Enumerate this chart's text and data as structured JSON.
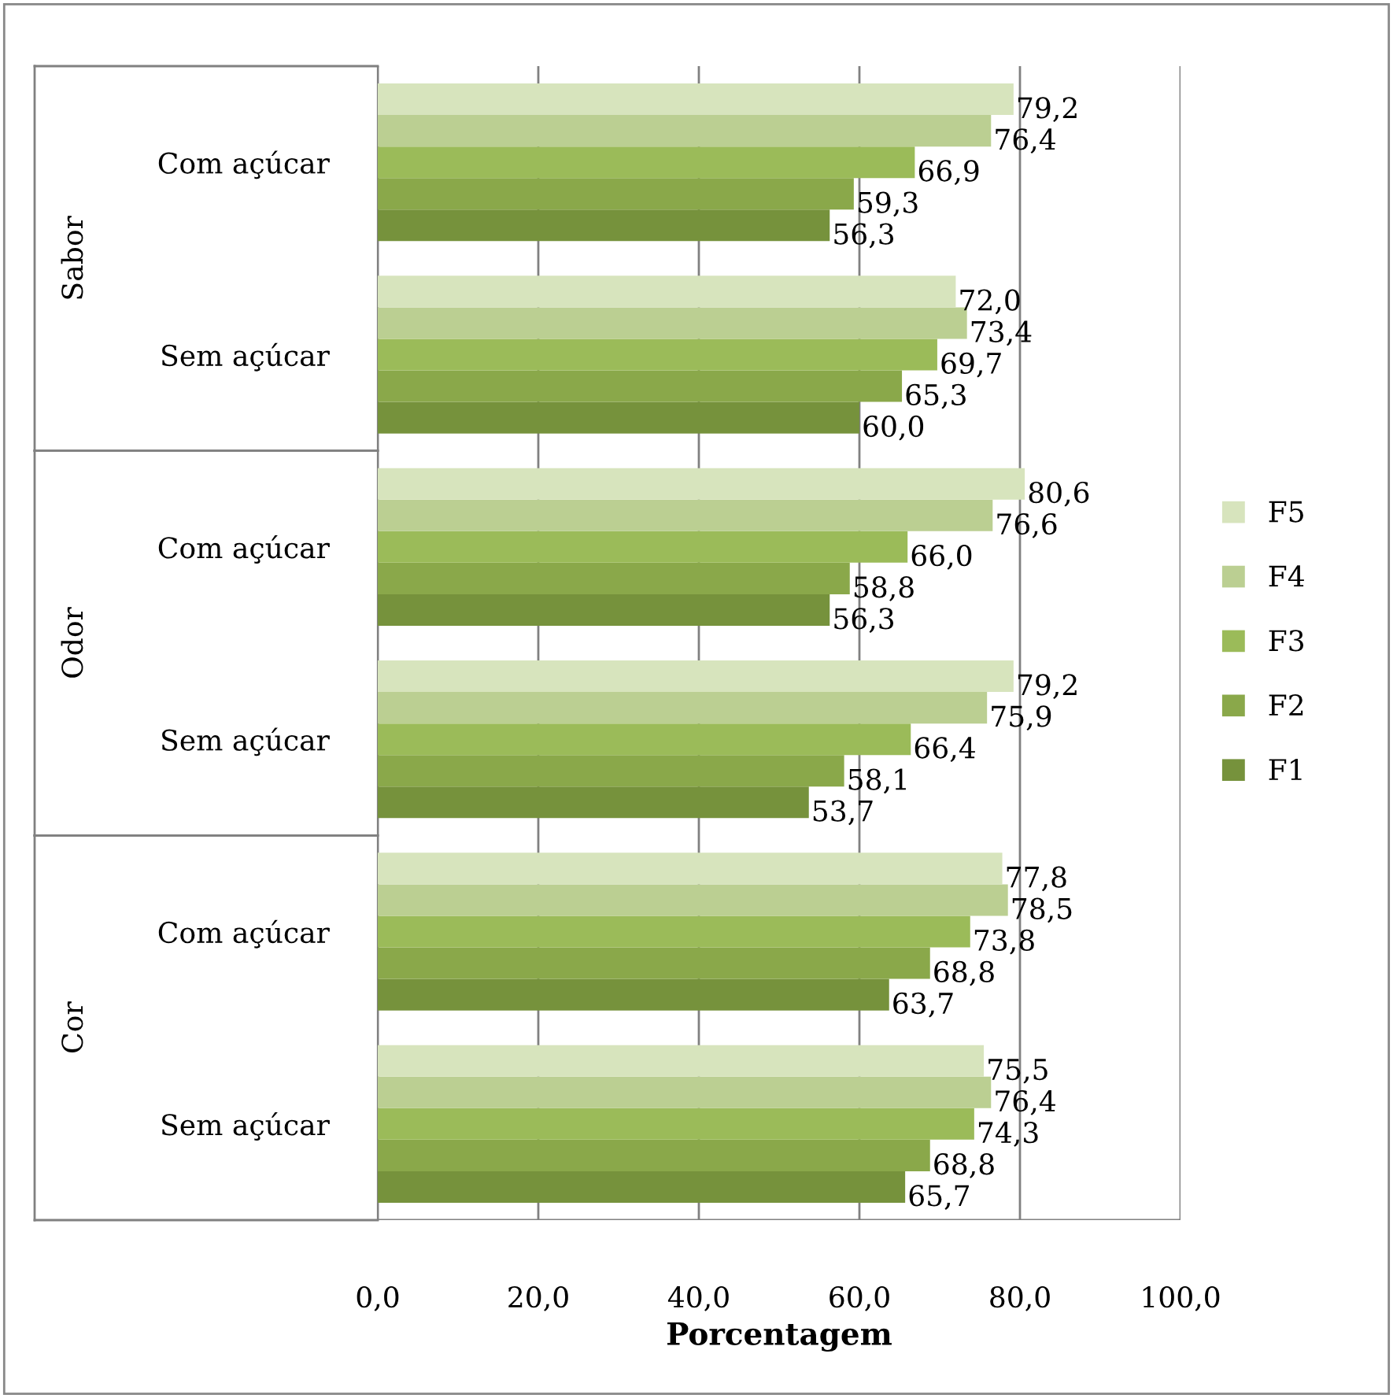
{
  "chart_data": {
    "type": "bar",
    "orientation": "horizontal",
    "xlabel": "Porcentagem",
    "categories": [
      "Com açúcar",
      "Sem açúcar",
      "Com açúcar",
      "Sem açúcar",
      "Com açúcar",
      "Sem açúcar"
    ],
    "annotations": [
      "Sabor",
      "Odor",
      "Cor"
    ],
    "series": [
      {
        "name": "F1",
        "color": "#76923c",
        "values": [
          56.3,
          60.0,
          56.3,
          53.7,
          63.7,
          65.7
        ],
        "value_labels": [
          "56,3",
          "60,0",
          "56,3",
          "53,7",
          "63,7",
          "65,7"
        ]
      },
      {
        "name": "F2",
        "color": "#8aa84a",
        "values": [
          59.3,
          65.3,
          58.8,
          58.1,
          68.8,
          68.8
        ],
        "value_labels": [
          "59,3",
          "65,3",
          "58,8",
          "58,1",
          "68,8",
          "68,8"
        ]
      },
      {
        "name": "F3",
        "color": "#9bbb59",
        "values": [
          66.9,
          69.7,
          66.0,
          66.4,
          73.8,
          74.3
        ],
        "value_labels": [
          "66,9",
          "69,7",
          "66,0",
          "66,4",
          "73,8",
          "74,3"
        ]
      },
      {
        "name": "F4",
        "color": "#bbcf92",
        "values": [
          76.4,
          73.4,
          76.6,
          75.9,
          78.5,
          76.4
        ],
        "value_labels": [
          "76,4",
          "73,4",
          "76,6",
          "75,9",
          "78,5",
          "76,4"
        ]
      },
      {
        "name": "F5",
        "color": "#d7e4bd",
        "values": [
          79.2,
          72.0,
          80.6,
          79.2,
          77.8,
          75.5
        ],
        "value_labels": [
          "79,2",
          "72,0",
          "80,6",
          "79,2",
          "77,8",
          "75,5"
        ]
      }
    ],
    "xlim": [
      0,
      100
    ],
    "xticks": [
      {
        "value": 0,
        "label": "0,0"
      },
      {
        "value": 20,
        "label": "20,0"
      },
      {
        "value": 40,
        "label": "40,0"
      },
      {
        "value": 60,
        "label": "60,0"
      },
      {
        "value": 80,
        "label": "80,0"
      },
      {
        "value": 100,
        "label": "100,0"
      }
    ],
    "grid": "x",
    "legend": "right"
  }
}
